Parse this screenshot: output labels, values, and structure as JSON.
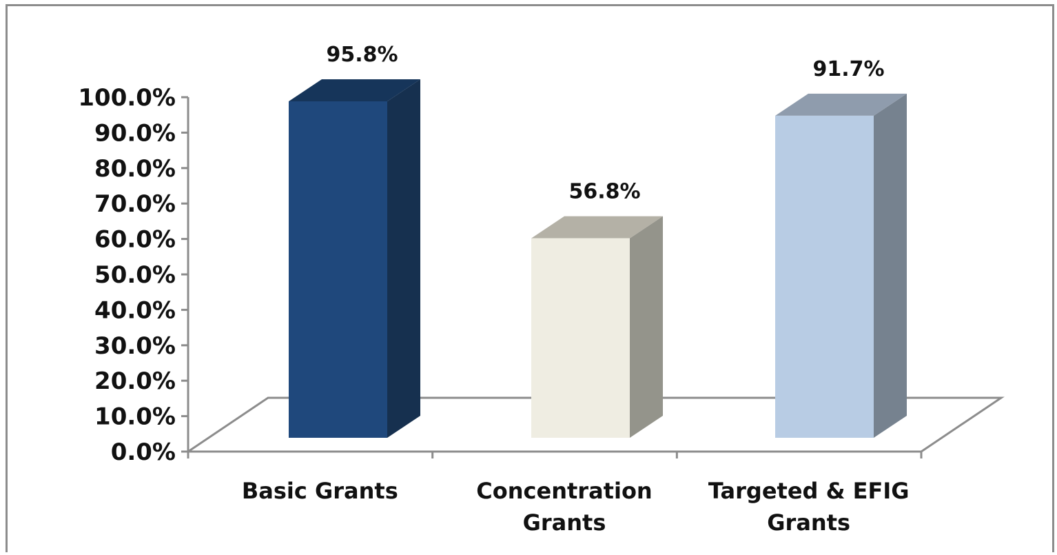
{
  "chart_data": {
    "type": "bar",
    "style": "3d-column",
    "title": "",
    "xlabel": "",
    "ylabel": "",
    "categories": [
      [
        "Basic Grants"
      ],
      [
        "Concentration",
        "Grants"
      ],
      [
        "Targeted & EFIG",
        "Grants"
      ]
    ],
    "values": [
      95.8,
      56.8,
      91.7
    ],
    "data_labels": [
      "95.8%",
      "56.8%",
      "91.7%"
    ],
    "ylim": [
      0,
      100
    ],
    "y_ticks": [
      "0.0%",
      "10.0%",
      "20.0%",
      "30.0%",
      "40.0%",
      "50.0%",
      "60.0%",
      "70.0%",
      "80.0%",
      "90.0%",
      "100.0%"
    ],
    "grid": false,
    "legend": "none",
    "colors": {
      "bars": [
        {
          "front": "#1f487c",
          "side": "#16304f",
          "top": "#16355a"
        },
        {
          "front": "#efede2",
          "side": "#94948b",
          "top": "#b4b1a6"
        },
        {
          "front": "#b8cce4",
          "side": "#76828f",
          "top": "#8f9cad"
        }
      ],
      "axis": "#8c8c8c",
      "text": "#111111"
    }
  }
}
